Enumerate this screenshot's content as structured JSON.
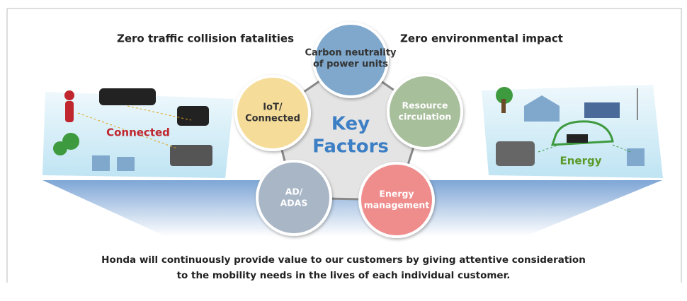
{
  "headings": {
    "left": "Zero traffic collision fatalities",
    "right": "Zero environmental impact"
  },
  "center": {
    "lines": [
      "Key",
      "Factors"
    ]
  },
  "factors": [
    {
      "lines": [
        "Carbon neutrality",
        "of power units"
      ]
    },
    {
      "lines": [
        "IoT/",
        "Connected"
      ]
    },
    {
      "lines": [
        "Resource",
        "circulation"
      ]
    },
    {
      "lines": [
        "AD/",
        "ADAS"
      ]
    },
    {
      "lines": [
        "Energy",
        "management"
      ]
    }
  ],
  "panels": {
    "left": "Connected",
    "right": "Energy"
  },
  "footer": {
    "lines": [
      "Honda will continuously provide value to our customers by giving attentive consideration",
      "to the mobility needs in the lives of each individual customer."
    ]
  }
}
